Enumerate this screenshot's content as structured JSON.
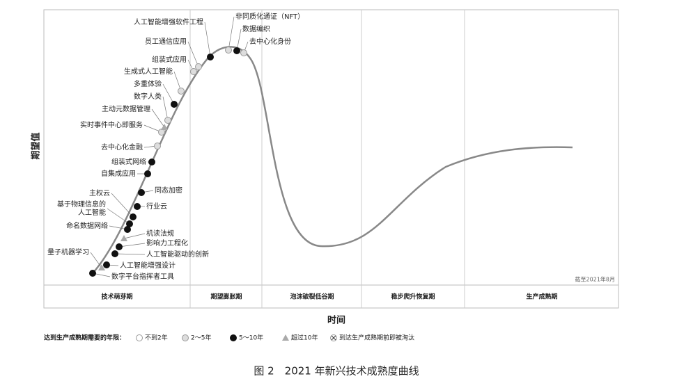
{
  "y_label": "期望值",
  "x_label": "时间",
  "note": "截至2021年8月",
  "phases": [
    "技术萌芽期",
    "期望膨胀期",
    "泡沫破裂低谷期",
    "稳步爬升恢复期",
    "生产成熟期"
  ],
  "legend": {
    "title": "达到生产成熟期需要的年限：",
    "items": [
      {
        "label": "不到2年",
        "technologies": []
      },
      {
        "label": "2～5年",
        "technologies": [
          "非同质化通证（NFT）",
          "去中心化身份",
          "员工通信应用",
          "组装式应用",
          "生成式人工智能",
          "数字人类",
          "实时事件中心即服务",
          "去中心化金融"
        ]
      },
      {
        "label": "5～10年",
        "technologies": [
          "人工智能增强软件工程",
          "数据编织",
          "多重体验",
          "组装式网络",
          "自集成应用",
          "同态加密",
          "行业云",
          "主权云",
          "基于物理信息的\n人工智能",
          "命名数据网络",
          "影响力工程化",
          "人工智能驱动的创新",
          "人工智能增强设计",
          "数字平台指挥者工具"
        ]
      },
      {
        "label": "超过10年",
        "technologies": [
          "主动元数据管理",
          "机读法规",
          "量子机器学习"
        ]
      },
      {
        "label": "到达生产成熟期前即被淘汰",
        "technologies": []
      }
    ]
  },
  "caption": "图 2　2021 年新兴技术成熟度曲线"
}
